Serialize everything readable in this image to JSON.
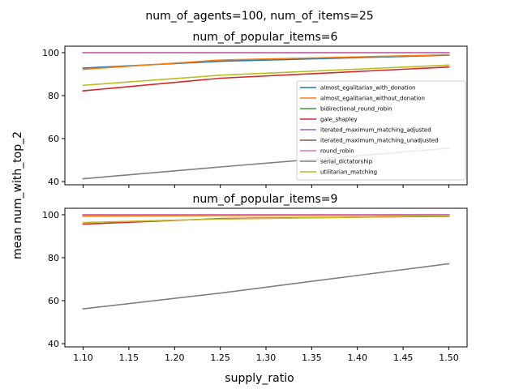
{
  "figure": {
    "suptitle": "num_of_agents=100, num_of_items=25",
    "xlabel": "supply_ratio",
    "ylabel": "mean num_with_top_2"
  },
  "chart_data": [
    {
      "type": "line",
      "title": "num_of_popular_items=6",
      "xlabel": "supply_ratio",
      "ylabel": "mean num_with_top_2",
      "x": [
        1.1,
        1.25,
        1.5
      ],
      "xlim": [
        1.08,
        1.52
      ],
      "ylim": [
        38.5,
        103
      ],
      "xticks": [
        1.1,
        1.15,
        1.2,
        1.25,
        1.3,
        1.35,
        1.4,
        1.45,
        1.5
      ],
      "xtick_labels_shown": false,
      "yticks": [
        40,
        60,
        80,
        100
      ],
      "legend": "lower right",
      "series": [
        {
          "name": "almost_egalitarian_with_donation",
          "color": "#1f77b4",
          "values": [
            92.8,
            96.0,
            98.8
          ]
        },
        {
          "name": "almost_egalitarian_without_donation",
          "color": "#ff7f0e",
          "values": [
            92.2,
            96.6,
            99.0
          ]
        },
        {
          "name": "bidirectional_round_robin",
          "color": "#2ca02c",
          "values": [
            100,
            100,
            100
          ]
        },
        {
          "name": "gale_shapley",
          "color": "#d62728",
          "values": [
            82.2,
            88.1,
            93.3
          ]
        },
        {
          "name": "iterated_maximum_matching_adjusted",
          "color": "#9467bd",
          "values": [
            100,
            100,
            100
          ]
        },
        {
          "name": "iterated_maximum_matching_unadjusted",
          "color": "#8c564b",
          "values": [
            100,
            100,
            100
          ]
        },
        {
          "name": "round_robin",
          "color": "#e377c2",
          "values": [
            100,
            100,
            100
          ]
        },
        {
          "name": "serial_dictatorship",
          "color": "#7f7f7f",
          "values": [
            41.3,
            46.8,
            55.5
          ]
        },
        {
          "name": "utilitarian_matching",
          "color": "#bcbd22",
          "values": [
            84.8,
            89.5,
            94.2
          ]
        }
      ]
    },
    {
      "type": "line",
      "title": "num_of_popular_items=9",
      "xlabel": "supply_ratio",
      "ylabel": "mean num_with_top_2",
      "x": [
        1.1,
        1.25,
        1.5
      ],
      "xlim": [
        1.08,
        1.52
      ],
      "ylim": [
        38.5,
        103
      ],
      "xticks": [
        1.1,
        1.15,
        1.2,
        1.25,
        1.3,
        1.35,
        1.4,
        1.45,
        1.5
      ],
      "xtick_labels": [
        "1.10",
        "1.15",
        "1.20",
        "1.25",
        "1.30",
        "1.35",
        "1.40",
        "1.45",
        "1.50"
      ],
      "yticks": [
        40,
        60,
        80,
        100
      ],
      "series": [
        {
          "name": "almost_egalitarian_with_donation",
          "color": "#1f77b4",
          "values": [
            99.6,
            99.8,
            100
          ]
        },
        {
          "name": "almost_egalitarian_without_donation",
          "color": "#ff7f0e",
          "values": [
            99.3,
            99.6,
            99.8
          ]
        },
        {
          "name": "bidirectional_round_robin",
          "color": "#2ca02c",
          "values": [
            100,
            100,
            100
          ]
        },
        {
          "name": "gale_shapley",
          "color": "#d62728",
          "values": [
            95.6,
            98.2,
            99.3
          ]
        },
        {
          "name": "iterated_maximum_matching_adjusted",
          "color": "#9467bd",
          "values": [
            100,
            100,
            100
          ]
        },
        {
          "name": "iterated_maximum_matching_unadjusted",
          "color": "#8c564b",
          "values": [
            100,
            100,
            100
          ]
        },
        {
          "name": "round_robin",
          "color": "#e377c2",
          "values": [
            100,
            100,
            100
          ]
        },
        {
          "name": "serial_dictatorship",
          "color": "#7f7f7f",
          "values": [
            56.2,
            63.5,
            77.2
          ]
        },
        {
          "name": "utilitarian_matching",
          "color": "#bcbd22",
          "values": [
            96.4,
            98.0,
            99.5
          ]
        }
      ]
    }
  ]
}
